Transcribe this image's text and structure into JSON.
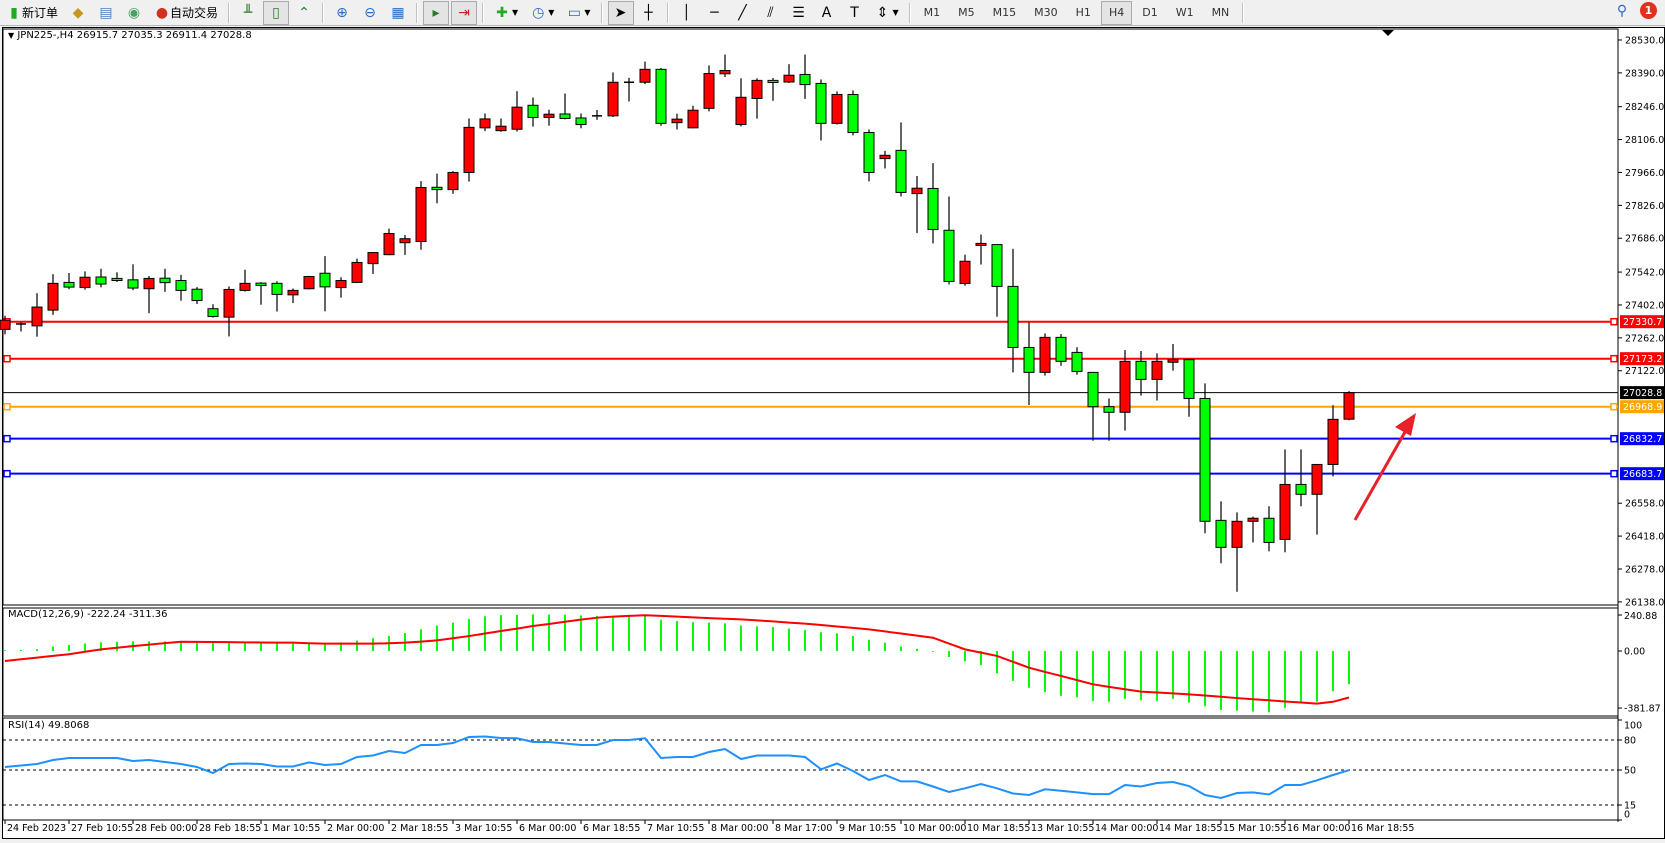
{
  "toolbar": {
    "new_order_label": "新订单",
    "auto_trading_label": "自动交易",
    "timeframes": [
      "M1",
      "M5",
      "M15",
      "M30",
      "H1",
      "H4",
      "D1",
      "W1",
      "MN"
    ],
    "active_timeframe": "H4",
    "notification_count": "1",
    "text_tool_label": "A"
  },
  "chart": {
    "header": "JPN225-,H4  26915.7 27035.3 26911.4 27028.8",
    "colors": {
      "bull": "#ff0000",
      "bear": "#00ff00",
      "outline": "#000000"
    },
    "price_axis": [
      "28530.0",
      "28390.0",
      "28246.0",
      "28106.0",
      "27966.0",
      "27826.0",
      "27686.0",
      "27542.0",
      "27402.0",
      "27262.0",
      "27122.0",
      "26558.0",
      "26418.0",
      "26278.0",
      "26138.0"
    ],
    "levels": [
      {
        "price": 27330.7,
        "label": "27330.7",
        "color": "#ff0000"
      },
      {
        "price": 27173.2,
        "label": "27173.2",
        "color": "#ff0000"
      },
      {
        "price": 27028.8,
        "label": "27028.8",
        "color": "#000000"
      },
      {
        "price": 26968.9,
        "label": "26968.9",
        "color": "#ffa500"
      },
      {
        "price": 26832.7,
        "label": "26832.7",
        "color": "#0000ff"
      },
      {
        "price": 26683.7,
        "label": "26683.7",
        "color": "#0000ff"
      }
    ],
    "candles_ohlc": [
      [
        27298,
        27356,
        27277,
        27337
      ],
      [
        27319,
        27327,
        27289,
        27321
      ],
      [
        27313,
        27452,
        27267,
        27393
      ],
      [
        27380,
        27533,
        27360,
        27494
      ],
      [
        27498,
        27538,
        27469,
        27478
      ],
      [
        27476,
        27545,
        27467,
        27520
      ],
      [
        27521,
        27556,
        27477,
        27491
      ],
      [
        27515,
        27541,
        27500,
        27506
      ],
      [
        27509,
        27575,
        27465,
        27474
      ],
      [
        27471,
        27525,
        27367,
        27515
      ],
      [
        27516,
        27556,
        27458,
        27497
      ],
      [
        27506,
        27530,
        27420,
        27464
      ],
      [
        27469,
        27478,
        27406,
        27421
      ],
      [
        27386,
        27405,
        27348,
        27353
      ],
      [
        27350,
        27481,
        27268,
        27468
      ],
      [
        27464,
        27552,
        27459,
        27494
      ],
      [
        27495,
        27499,
        27403,
        27485
      ],
      [
        27494,
        27503,
        27374,
        27447
      ],
      [
        27445,
        27472,
        27410,
        27464
      ],
      [
        27471,
        27526,
        27468,
        27523
      ],
      [
        27537,
        27610,
        27375,
        27479
      ],
      [
        27476,
        27520,
        27433,
        27506
      ],
      [
        27498,
        27599,
        27495,
        27583
      ],
      [
        27578,
        27627,
        27534,
        27625
      ],
      [
        27616,
        27727,
        27614,
        27706
      ],
      [
        27667,
        27700,
        27615,
        27684
      ],
      [
        27672,
        27929,
        27637,
        27902
      ],
      [
        27903,
        27961,
        27835,
        27893
      ],
      [
        27893,
        27972,
        27875,
        27966
      ],
      [
        27966,
        28196,
        27927,
        28158
      ],
      [
        28156,
        28217,
        28142,
        28194
      ],
      [
        28144,
        28196,
        28139,
        28163
      ],
      [
        28150,
        28312,
        28140,
        28244
      ],
      [
        28252,
        28285,
        28161,
        28200
      ],
      [
        28200,
        28233,
        28165,
        28214
      ],
      [
        28215,
        28302,
        28192,
        28196
      ],
      [
        28198,
        28217,
        28154,
        28170
      ],
      [
        28205,
        28232,
        28190,
        28207
      ],
      [
        28207,
        28392,
        28202,
        28350
      ],
      [
        28348,
        28369,
        28268,
        28350
      ],
      [
        28350,
        28438,
        28342,
        28405
      ],
      [
        28405,
        28411,
        28165,
        28175
      ],
      [
        28178,
        28216,
        28149,
        28193
      ],
      [
        28156,
        28250,
        28154,
        28231
      ],
      [
        28239,
        28422,
        28226,
        28387
      ],
      [
        28386,
        28468,
        28372,
        28400
      ],
      [
        28170,
        28367,
        28162,
        28286
      ],
      [
        28281,
        28367,
        28195,
        28358
      ],
      [
        28358,
        28368,
        28271,
        28349
      ],
      [
        28351,
        28427,
        28347,
        28380
      ],
      [
        28383,
        28468,
        28279,
        28340
      ],
      [
        28345,
        28362,
        28102,
        28175
      ],
      [
        28175,
        28311,
        28170,
        28298
      ],
      [
        28298,
        28315,
        28124,
        28136
      ],
      [
        28136,
        28149,
        27928,
        27966
      ],
      [
        28025,
        28058,
        27983,
        28039
      ],
      [
        28060,
        28179,
        27864,
        27881
      ],
      [
        27876,
        27951,
        27708,
        27899
      ],
      [
        27898,
        28006,
        27664,
        27723
      ],
      [
        27720,
        27864,
        27489,
        27502
      ],
      [
        27493,
        27616,
        27484,
        27588
      ],
      [
        27655,
        27702,
        27574,
        27664
      ],
      [
        27659,
        27659,
        27352,
        27481
      ],
      [
        27481,
        27641,
        27115,
        27221
      ],
      [
        27221,
        27327,
        26976,
        27115
      ],
      [
        27115,
        27281,
        27101,
        27264
      ],
      [
        27264,
        27278,
        27143,
        27162
      ],
      [
        27200,
        27222,
        27105,
        27119
      ],
      [
        27115,
        27115,
        26824,
        26969
      ],
      [
        26969,
        27004,
        26824,
        26945
      ],
      [
        26945,
        27210,
        26867,
        27162
      ],
      [
        27162,
        27206,
        27016,
        27085
      ],
      [
        27085,
        27196,
        26995,
        27162
      ],
      [
        27158,
        27236,
        27122,
        27169
      ],
      [
        27169,
        27169,
        26926,
        27004
      ],
      [
        27004,
        27068,
        26430,
        26481
      ],
      [
        26485,
        26566,
        26302,
        26370
      ],
      [
        26370,
        26519,
        26181,
        26481
      ],
      [
        26481,
        26501,
        26391,
        26494
      ],
      [
        26494,
        26545,
        26353,
        26391
      ],
      [
        26404,
        26787,
        26349,
        26638
      ],
      [
        26638,
        26787,
        26545,
        26596
      ],
      [
        26596,
        26723,
        26424,
        26723
      ],
      [
        26723,
        26975,
        26672,
        26915
      ],
      [
        26915.7,
        27035.3,
        26911.4,
        27028.8
      ]
    ],
    "time_axis": [
      "24 Feb 2023",
      "27 Feb 10:55",
      "28 Feb 00:00",
      "28 Feb 18:55",
      "1 Mar 10:55",
      "2 Mar 00:00",
      "2 Mar 18:55",
      "3 Mar 10:55",
      "6 Mar 00:00",
      "6 Mar 18:55",
      "7 Mar 10:55",
      "8 Mar 00:00",
      "8 Mar 17:00",
      "9 Mar 10:55",
      "10 Mar 00:00",
      "10 Mar 18:55",
      "13 Mar 10:55",
      "14 Mar 00:00",
      "14 Mar 18:55",
      "15 Mar 10:55",
      "16 Mar 00:00",
      "16 Mar 18:55"
    ],
    "annotation_arrow_color": "#e8202a"
  },
  "macd": {
    "header": "MACD(12,26,9) -222.24 -311.36",
    "axis": [
      "240.88",
      "0.00",
      "-381.87"
    ],
    "histogram_color": "#00ff00",
    "signal_color": "#ff0000",
    "histogram": [
      5,
      8,
      12,
      30,
      40,
      50,
      58,
      62,
      64,
      65,
      65,
      64,
      62,
      60,
      60,
      60,
      58,
      56,
      55,
      54,
      55,
      58,
      70,
      85,
      100,
      120,
      145,
      170,
      190,
      215,
      232,
      240,
      242,
      245,
      244,
      243,
      238,
      235,
      232,
      230,
      236,
      210,
      200,
      192,
      190,
      185,
      170,
      165,
      160,
      150,
      140,
      125,
      118,
      100,
      75,
      55,
      30,
      15,
      -5,
      -40,
      -70,
      -95,
      -150,
      -200,
      -245,
      -275,
      -300,
      -310,
      -335,
      -340,
      -320,
      -330,
      -335,
      -320,
      -345,
      -370,
      -395,
      -400,
      -405,
      -410,
      -380,
      -350,
      -340,
      -270,
      -222.24
    ],
    "signal": [
      -67,
      -55,
      -44,
      -33,
      -22,
      -5,
      11,
      22,
      33,
      43,
      53,
      62,
      61,
      60,
      59,
      58,
      57,
      56,
      56,
      52,
      49,
      49,
      49,
      49,
      52,
      56,
      63,
      71,
      85,
      100,
      117,
      134,
      150,
      167,
      181,
      196,
      210,
      223,
      230,
      235,
      239,
      235,
      230,
      225,
      220,
      216,
      212,
      205,
      198,
      190,
      183,
      174,
      164,
      155,
      145,
      131,
      117,
      103,
      89,
      50,
      11,
      -11,
      -33,
      -72,
      -112,
      -140,
      -167,
      -195,
      -223,
      -240,
      -256,
      -272,
      -278,
      -284,
      -290,
      -298,
      -306,
      -315,
      -323,
      -330,
      -338,
      -345,
      -352,
      -340,
      -311.36
    ]
  },
  "rsi": {
    "header": "RSI(14) 49.8068",
    "axis": [
      "100",
      "80",
      "50",
      "15",
      "0"
    ],
    "levels": [
      80,
      50,
      15
    ],
    "line_color": "#1e90ff",
    "values": [
      53,
      54.5,
      56,
      60,
      62,
      62,
      62,
      62,
      59,
      60,
      58,
      56,
      53,
      47,
      56,
      56.5,
      56,
      53.5,
      53.5,
      57.6,
      55,
      56,
      63,
      64.5,
      69,
      67,
      75,
      75,
      77,
      83,
      83.5,
      82,
      81.7,
      78,
      78,
      76.5,
      75,
      75,
      80,
      80,
      81.7,
      62,
      63,
      63,
      68,
      71,
      61,
      64.5,
      64.5,
      64.5,
      63,
      50.7,
      56.5,
      49,
      40,
      45,
      38.6,
      38.6,
      33.5,
      28,
      31.7,
      36,
      31.7,
      26.5,
      25,
      30.7,
      29.3,
      27.6,
      25.9,
      25.9,
      35,
      33.5,
      37,
      38,
      34,
      25,
      22,
      27,
      27.6,
      25.5,
      35,
      35,
      39.7,
      45,
      49.8068
    ]
  }
}
